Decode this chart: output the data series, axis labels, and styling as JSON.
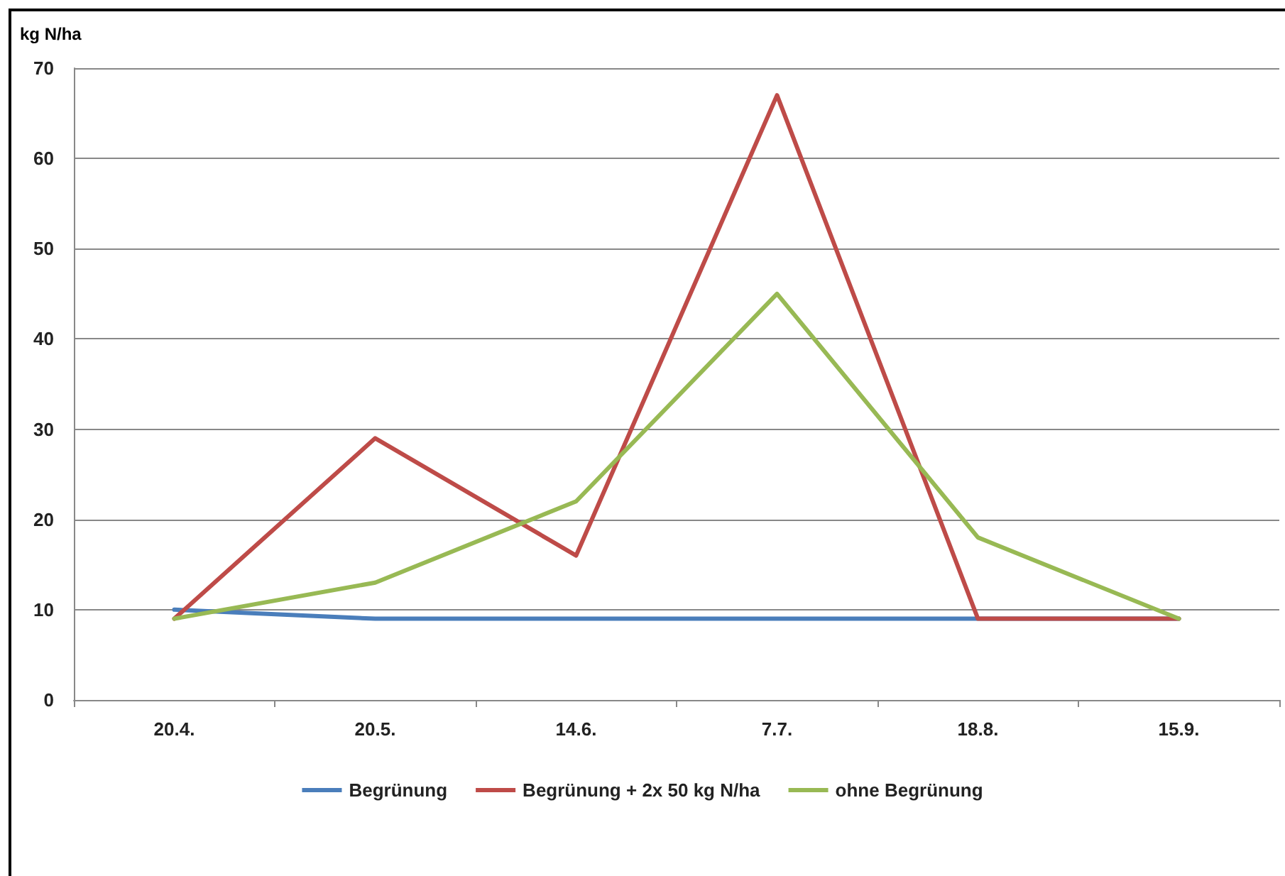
{
  "chart_data": {
    "type": "line",
    "ylabel": "kg N/ha",
    "categories": [
      "20.4.",
      "20.5.",
      "14.6.",
      "7.7.",
      "18.8.",
      "15.9."
    ],
    "series": [
      {
        "name": "Begrünung",
        "color": "#4a7ebb",
        "values": [
          10,
          9,
          9,
          9,
          9,
          9
        ]
      },
      {
        "name": "Begrünung + 2x 50 kg N/ha",
        "color": "#be4b48",
        "values": [
          9,
          29,
          16,
          67,
          9,
          9
        ]
      },
      {
        "name": "ohne Begrünung",
        "color": "#98b954",
        "values": [
          9,
          13,
          22,
          45,
          18,
          9
        ]
      }
    ],
    "ylim": [
      0,
      70
    ],
    "yticks": [
      0,
      10,
      20,
      30,
      40,
      50,
      60,
      70
    ],
    "grid": "y",
    "legend": "bottom",
    "marker": "none",
    "line_style": "solid"
  }
}
